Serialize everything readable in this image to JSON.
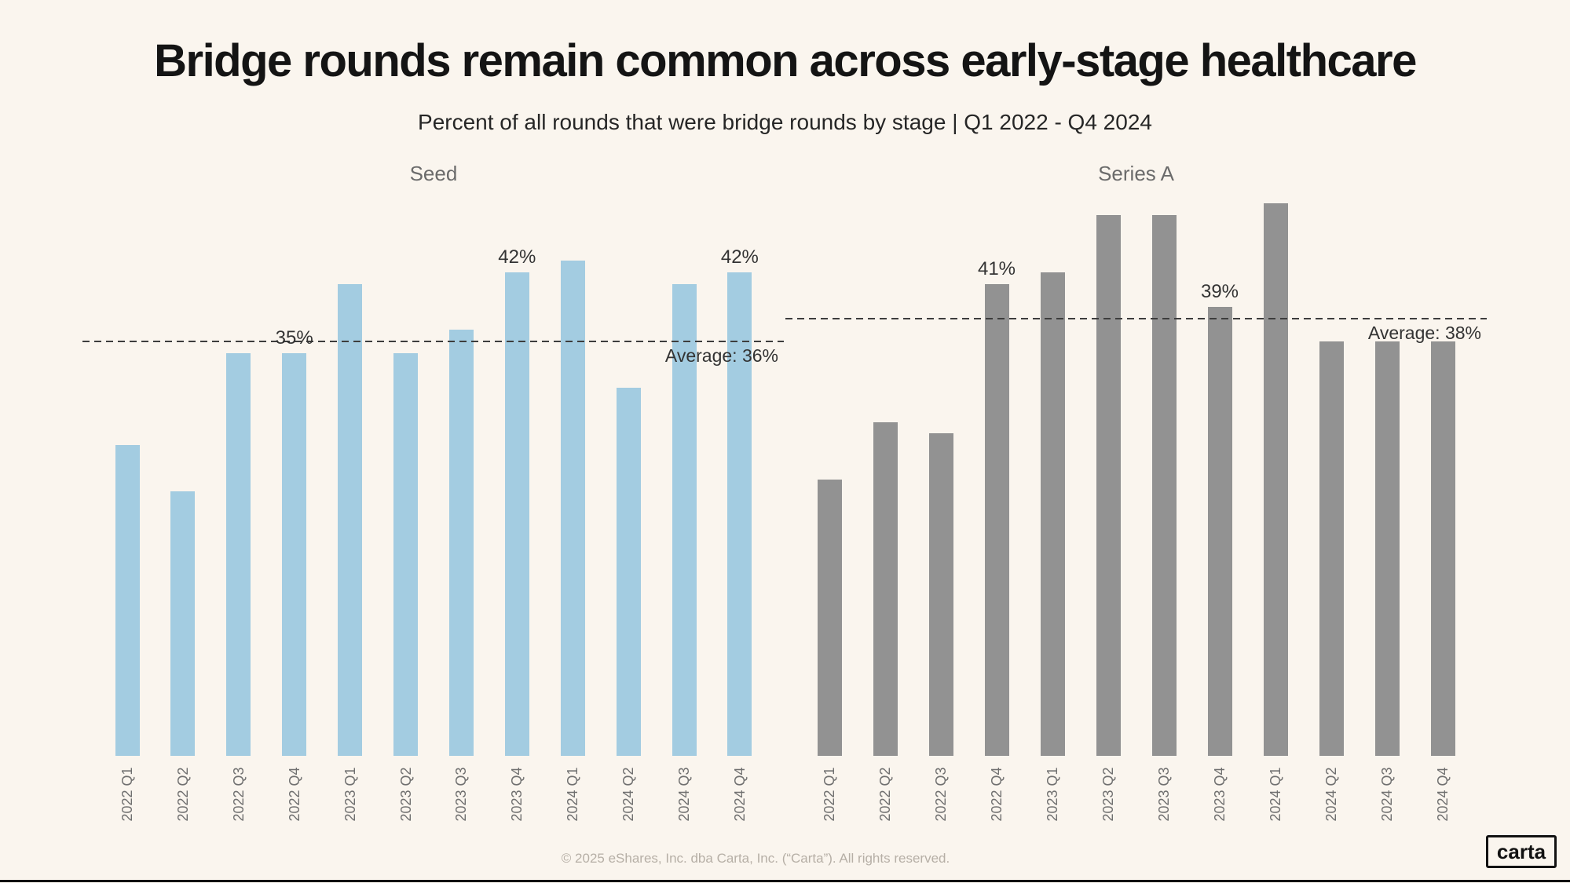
{
  "page": {
    "title": "Bridge rounds remain common across early-stage healthcare",
    "subtitle": "Percent of all rounds that were bridge rounds by stage | Q1 2022 - Q4 2024",
    "footer": "© 2025 eShares, Inc. dba Carta, Inc. (“Carta”). All rights reserved.",
    "logo_text": "carta"
  },
  "colors": {
    "background": "#faf5ee",
    "seed_bar": "#a3cce1",
    "series_a_bar": "#929292",
    "dashed_line": "#3d3d3d",
    "label_text": "#333333"
  },
  "chart_data": {
    "type": "bar",
    "title": "Bridge rounds remain common across early-stage healthcare",
    "subtitle": "Percent of all rounds that were bridge rounds by stage | Q1 2022 - Q4 2024",
    "unit": "%",
    "ylim": [
      0,
      52
    ],
    "grid": false,
    "legend": "none",
    "categories": [
      "2022 Q1",
      "2022 Q2",
      "2022 Q3",
      "2022 Q4",
      "2023 Q1",
      "2023 Q2",
      "2023 Q3",
      "2023 Q4",
      "2024 Q1",
      "2024 Q2",
      "2024 Q3",
      "2024 Q4"
    ],
    "panels": [
      {
        "name": "Seed",
        "bar_color": "#a3cce1",
        "values": [
          27,
          23,
          35,
          35,
          41,
          35,
          37,
          42,
          43,
          32,
          41,
          42
        ],
        "annotations": [
          {
            "index": 3,
            "text": "35%"
          },
          {
            "index": 7,
            "text": "42%"
          },
          {
            "index": 11,
            "text": "42%"
          }
        ],
        "average": 36,
        "average_label": "Average: 36%"
      },
      {
        "name": "Series A",
        "bar_color": "#929292",
        "values": [
          24,
          29,
          28,
          41,
          42,
          47,
          47,
          39,
          48,
          36,
          36,
          36
        ],
        "annotations": [
          {
            "index": 3,
            "text": "41%"
          },
          {
            "index": 7,
            "text": "39%"
          }
        ],
        "average": 38,
        "average_label": "Average: 38%"
      }
    ]
  }
}
